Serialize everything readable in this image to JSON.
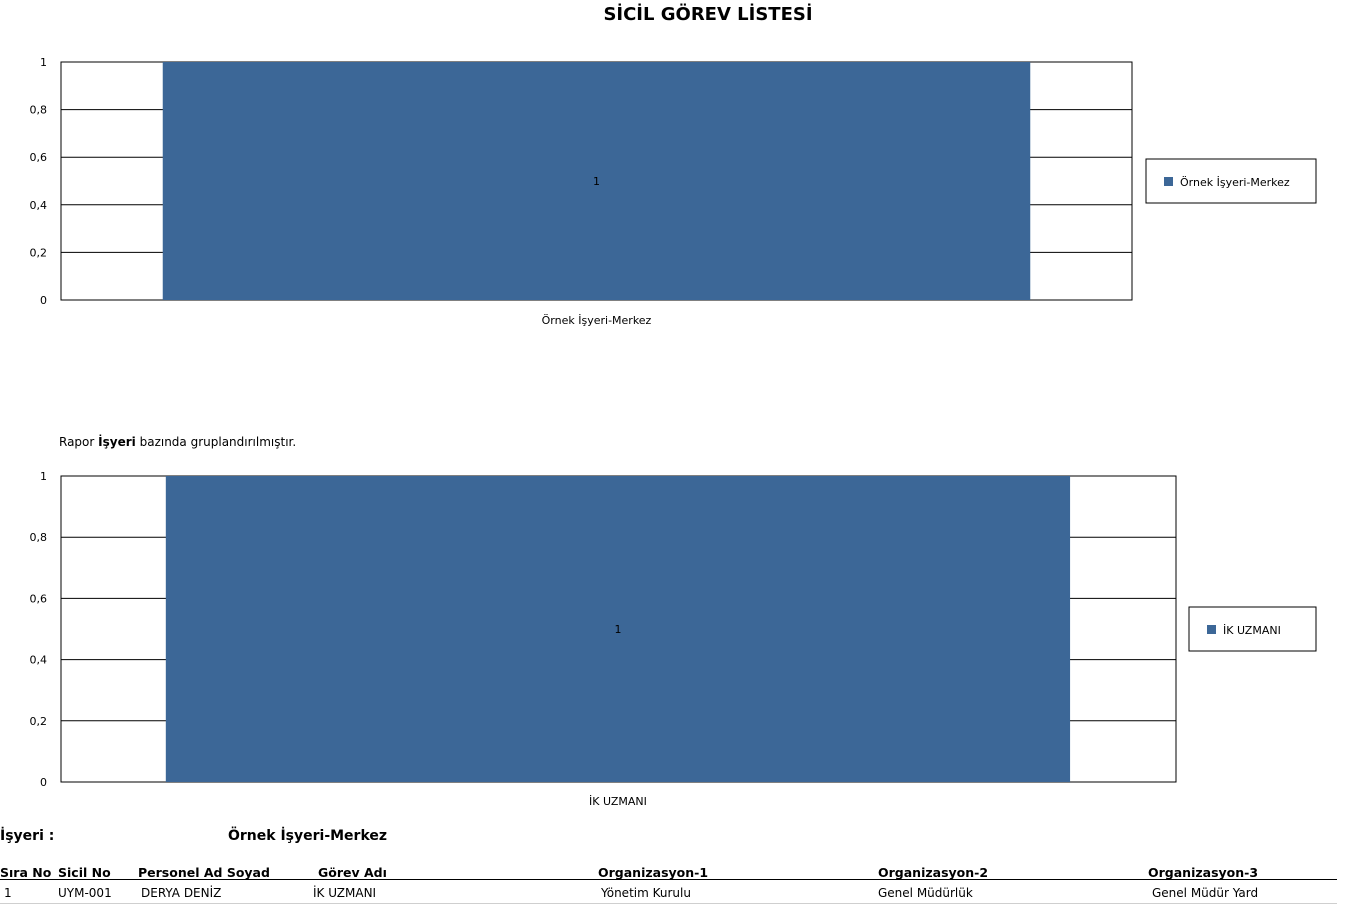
{
  "report": {
    "title": "SİCİL GÖREV LİSTESİ",
    "note_prefix": "Rapor",
    "note_bold": "İşyeri",
    "note_suffix": "bazında  gruplandırılmıştır."
  },
  "colors": {
    "bar": "#3c6797",
    "grid": "#000000"
  },
  "chart_data": [
    {
      "type": "bar",
      "categories": [
        "Örnek İşyeri-Merkez"
      ],
      "series": [
        {
          "name": "Örnek İşyeri-Merkez",
          "values": [
            1
          ]
        }
      ],
      "data_labels": [
        "1"
      ],
      "yticks": [
        "0",
        "0,2",
        "0,4",
        "0,6",
        "0,8",
        "1"
      ],
      "ylim": [
        0,
        1
      ],
      "legend_position": "right"
    },
    {
      "type": "bar",
      "categories": [
        "İK UZMANI"
      ],
      "series": [
        {
          "name": "İK UZMANI",
          "values": [
            1
          ]
        }
      ],
      "data_labels": [
        "1"
      ],
      "yticks": [
        "0",
        "0,2",
        "0,4",
        "0,6",
        "0,8",
        "1"
      ],
      "ylim": [
        0,
        1
      ],
      "legend_position": "right"
    }
  ],
  "group": {
    "label": "İşyeri  :",
    "value": "Örnek İşyeri-Merkez"
  },
  "table": {
    "headers": [
      "Sıra No",
      "Sicil No",
      "Personel Ad Soyad",
      "Görev Adı",
      "Organizasyon-1",
      "Organizasyon-2",
      "Organizasyon-3"
    ],
    "rows": [
      [
        "1",
        "UYM-001",
        "DERYA DENİZ",
        "İK UZMANI",
        "Yönetim Kurulu",
        "Genel Müdürlük",
        "Genel Müdür Yard"
      ]
    ]
  }
}
